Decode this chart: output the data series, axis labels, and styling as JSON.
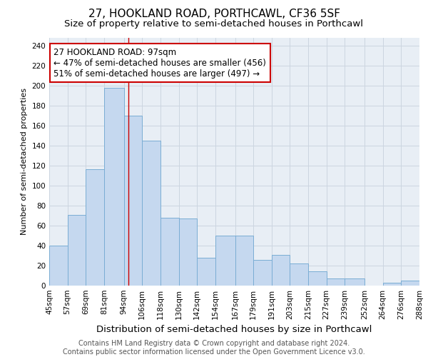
{
  "title": "27, HOOKLAND ROAD, PORTHCAWL, CF36 5SF",
  "subtitle": "Size of property relative to semi-detached houses in Porthcawl",
  "xlabel": "Distribution of semi-detached houses by size in Porthcawl",
  "ylabel": "Number of semi-detached properties",
  "footer_line1": "Contains HM Land Registry data © Crown copyright and database right 2024.",
  "footer_line2": "Contains public sector information licensed under the Open Government Licence v3.0.",
  "annotation_line1": "27 HOOKLAND ROAD: 97sqm",
  "annotation_line2": "← 47% of semi-detached houses are smaller (456)",
  "annotation_line3": "51% of semi-detached houses are larger (497) →",
  "bar_left_edges": [
    45,
    57,
    69,
    81,
    94,
    106,
    118,
    130,
    142,
    154,
    167,
    179,
    191,
    203,
    215,
    227,
    239,
    252,
    264,
    276
  ],
  "bar_widths": [
    12,
    12,
    12,
    13,
    12,
    12,
    12,
    12,
    12,
    13,
    12,
    12,
    12,
    12,
    12,
    12,
    13,
    12,
    12,
    12
  ],
  "bar_heights": [
    40,
    71,
    116,
    198,
    170,
    145,
    68,
    67,
    28,
    50,
    50,
    26,
    31,
    22,
    14,
    7,
    7,
    0,
    3,
    5
  ],
  "tick_labels": [
    "45sqm",
    "57sqm",
    "69sqm",
    "81sqm",
    "94sqm",
    "106sqm",
    "118sqm",
    "130sqm",
    "142sqm",
    "154sqm",
    "167sqm",
    "179sqm",
    "191sqm",
    "203sqm",
    "215sqm",
    "227sqm",
    "239sqm",
    "252sqm",
    "264sqm",
    "276sqm",
    "288sqm"
  ],
  "tick_positions": [
    45,
    57,
    69,
    81,
    94,
    106,
    118,
    130,
    142,
    154,
    167,
    179,
    191,
    203,
    215,
    227,
    239,
    252,
    264,
    276,
    288
  ],
  "bar_color": "#c5d8ef",
  "bar_edge_color": "#7aadd4",
  "vline_x": 97,
  "vline_color": "#cc0000",
  "grid_color": "#ccd5e0",
  "background_color": "#e8eef5",
  "xlim": [
    45,
    288
  ],
  "ylim": [
    0,
    248
  ],
  "yticks": [
    0,
    20,
    40,
    60,
    80,
    100,
    120,
    140,
    160,
    180,
    200,
    220,
    240
  ],
  "title_fontsize": 11,
  "subtitle_fontsize": 9.5,
  "xlabel_fontsize": 9.5,
  "ylabel_fontsize": 8,
  "tick_fontsize": 7.5,
  "footer_fontsize": 7,
  "annotation_fontsize": 8.5
}
